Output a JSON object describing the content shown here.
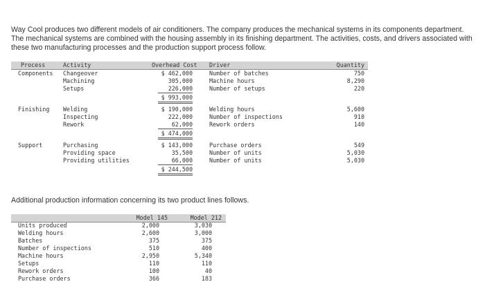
{
  "intro": "Way Cool produces two different models of air conditioners. The company produces the mechanical systems in its components department. The mechanical systems are combined with the housing assembly in its finishing department. The activities, costs, and drivers associated with these two manufacturing processes and the production support process follow.",
  "activity_table": {
    "headers": {
      "process": "Process",
      "activity": "Activity",
      "cost": "Overhead Cost",
      "driver": "Driver",
      "quantity": "Quantity"
    },
    "groups": [
      {
        "process": "Components",
        "total": "$ 993,000",
        "rows": [
          {
            "activity": "Changeover",
            "cost": "$ 462,000",
            "driver": "Number of batches",
            "quantity": "750"
          },
          {
            "activity": "Machining",
            "cost": "305,000",
            "driver": "Machine hours",
            "quantity": "8,290"
          },
          {
            "activity": "Setups",
            "cost": "226,000",
            "driver": "Number of setups",
            "quantity": "220"
          }
        ]
      },
      {
        "process": "Finishing",
        "total": "$ 474,000",
        "rows": [
          {
            "activity": "Welding",
            "cost": "$ 190,000",
            "driver": "Welding hours",
            "quantity": "5,600"
          },
          {
            "activity": "Inspecting",
            "cost": "222,000",
            "driver": "Number of inspections",
            "quantity": "910"
          },
          {
            "activity": "Rework",
            "cost": "62,000",
            "driver": "Rework orders",
            "quantity": "140"
          }
        ]
      },
      {
        "process": "Support",
        "total": "$ 244,500",
        "rows": [
          {
            "activity": "Purchasing",
            "cost": "$ 143,000",
            "driver": "Purchase orders",
            "quantity": "549"
          },
          {
            "activity": "Providing space",
            "cost": "35,500",
            "driver": "Number of units",
            "quantity": "5,030"
          },
          {
            "activity": "Providing utilities",
            "cost": "66,000",
            "driver": "Number of units",
            "quantity": "5,030"
          }
        ]
      }
    ]
  },
  "additional": "Additional production information concerning its two product lines follows.",
  "product_table": {
    "headers": {
      "label": "",
      "m145": "Model 145",
      "m212": "Model 212"
    },
    "rows": [
      {
        "label": "Units produced",
        "m145": "2,000",
        "m212": "3,030"
      },
      {
        "label": "Welding hours",
        "m145": "2,600",
        "m212": "3,000"
      },
      {
        "label": "Batches",
        "m145": "375",
        "m212": "375"
      },
      {
        "label": "Number of inspections",
        "m145": "510",
        "m212": "400"
      },
      {
        "label": "Machine hours",
        "m145": "2,950",
        "m212": "5,340"
      },
      {
        "label": "Setups",
        "m145": "110",
        "m212": "110"
      },
      {
        "label": "Rework orders",
        "m145": "100",
        "m212": "40"
      },
      {
        "label": "Purchase orders",
        "m145": "366",
        "m212": "183"
      }
    ]
  }
}
